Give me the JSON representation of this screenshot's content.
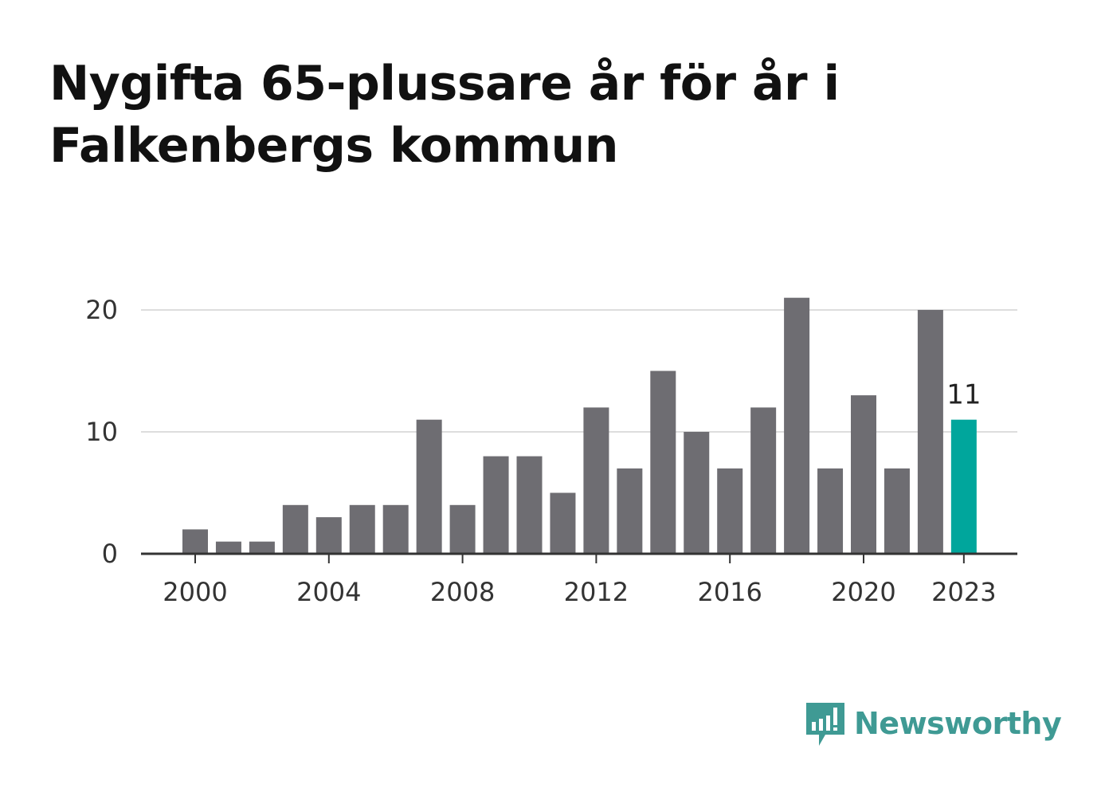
{
  "title": "Nygifta 65-plussare år för år i Falkenbergs kommun",
  "brand": {
    "name": "Newsworthy",
    "color": "#3f9a94",
    "icon": "bar-chart-speech-bubble-icon"
  },
  "colors": {
    "bar": "#6e6d72",
    "highlight": "#00a69c",
    "grid": "#dddddd",
    "axis": "#333333",
    "text": "#333333"
  },
  "chart_data": {
    "type": "bar",
    "categories": [
      "2000",
      "2001",
      "2002",
      "2003",
      "2004",
      "2005",
      "2006",
      "2007",
      "2008",
      "2009",
      "2010",
      "2011",
      "2012",
      "2013",
      "2014",
      "2015",
      "2016",
      "2017",
      "2018",
      "2019",
      "2020",
      "2021",
      "2022",
      "2023"
    ],
    "values": [
      2,
      1,
      1,
      4,
      3,
      4,
      4,
      11,
      4,
      8,
      8,
      5,
      12,
      7,
      15,
      10,
      7,
      12,
      21,
      7,
      13,
      7,
      20,
      11
    ],
    "x_tick_labels": [
      "2000",
      "2004",
      "2008",
      "2012",
      "2016",
      "2020",
      "2023"
    ],
    "y_ticks": [
      0,
      10,
      20
    ],
    "ylim": [
      0,
      21
    ],
    "highlight": {
      "category": "2023",
      "label": "11"
    },
    "title": "Nygifta 65-plussare år för år i Falkenbergs kommun",
    "xlabel": "",
    "ylabel": "",
    "grid": true
  }
}
